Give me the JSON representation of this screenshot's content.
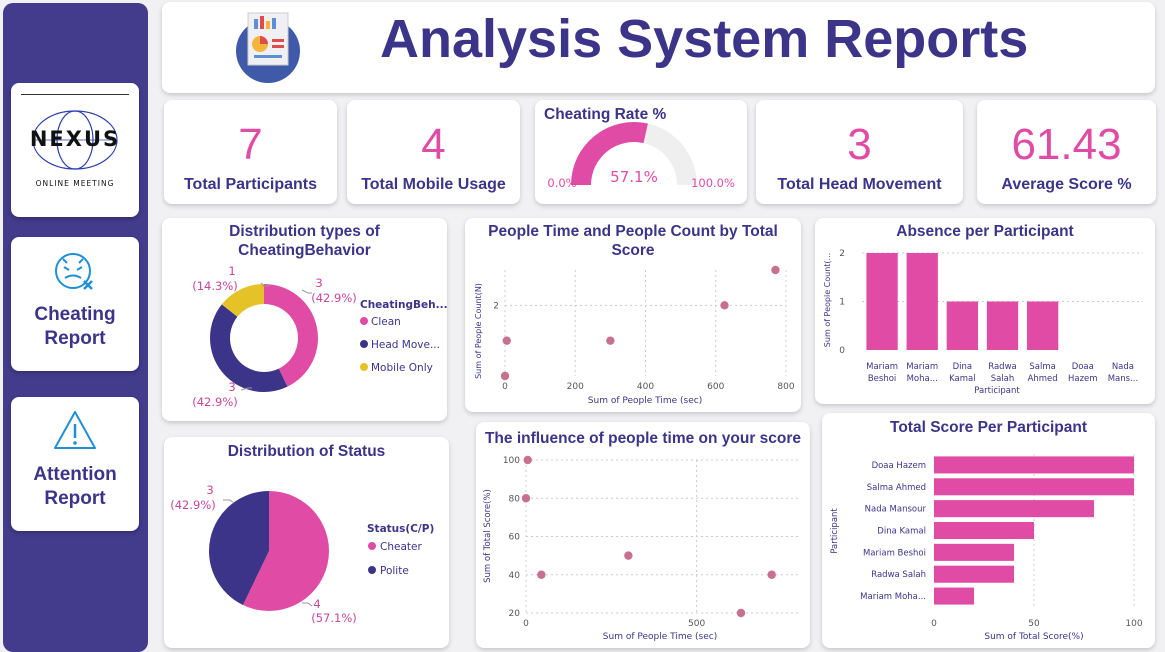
{
  "header": {
    "title": "Analysis System Reports",
    "icon": "report-document-icon"
  },
  "sidebar": {
    "logo": {
      "word": "NEXUS",
      "sub": "ONLINE MEETING"
    },
    "nav": [
      {
        "label_1": "Cheating",
        "label_2": "Report",
        "icon": "cheating-face-icon"
      },
      {
        "label_1": "Attention",
        "label_2": "Report",
        "icon": "warning-triangle-icon"
      }
    ]
  },
  "kpis": {
    "participants": {
      "value": "7",
      "label": "Total Participants"
    },
    "mobile": {
      "value": "4",
      "label": "Total Mobile Usage"
    },
    "head": {
      "value": "3",
      "label": "Total Head Movement"
    },
    "score": {
      "value": "61.43",
      "label": "Average Score %"
    }
  },
  "colors": {
    "pink": "#e04ba6",
    "indigo": "#3b3489",
    "yellow": "#e6c229",
    "track": "#efefef"
  },
  "chart_data": [
    {
      "id": "gauge",
      "type": "gauge",
      "title": "Cheating Rate %",
      "value": 57.1,
      "value_label": "57.1%",
      "min_label": "0.0%",
      "max_label": "100.0%"
    },
    {
      "id": "cheating-donut",
      "type": "donut",
      "title_1": "Distribution types of",
      "title_2": "CheatingBehavior",
      "legend_title": "CheatingBeh...",
      "slices": [
        {
          "name": "Clean",
          "value": 3,
          "label": "3",
          "pct": "(42.9%)"
        },
        {
          "name": "Head Move...",
          "value": 3,
          "label": "3",
          "pct": "(42.9%)"
        },
        {
          "name": "Mobile Only",
          "value": 1,
          "label": "1",
          "pct": "(14.3%)"
        }
      ]
    },
    {
      "id": "status-pie",
      "type": "pie",
      "title": "Distribution of Status",
      "legend_title": "Status(C/P)",
      "slices": [
        {
          "name": "Cheater",
          "value": 4,
          "label": "4",
          "pct": "(57.1%)"
        },
        {
          "name": "Polite",
          "value": 3,
          "label": "3",
          "pct": "(42.9%)"
        }
      ]
    },
    {
      "id": "time-count",
      "type": "scatter",
      "title_1": "People Time and People Count by Total",
      "title_2": "Score",
      "xlabel": "Sum of People Time (sec)",
      "ylabel": "Sum of People Count(N)",
      "xlim": [
        0,
        800
      ],
      "ylim": [
        0,
        3
      ],
      "xticks": [
        0,
        200,
        400,
        600,
        800
      ],
      "yticks": [
        2
      ],
      "points": [
        [
          0,
          0
        ],
        [
          5,
          1
        ],
        [
          300,
          1
        ],
        [
          625,
          2
        ],
        [
          770,
          3
        ]
      ]
    },
    {
      "id": "absence",
      "type": "bar",
      "title": "Absence per Participant",
      "xlabel": "Participant",
      "ylabel": "Sum of People Count(...",
      "ylim": [
        0,
        2
      ],
      "yticks": [
        0,
        1,
        2
      ],
      "categories": [
        [
          "Mariam",
          "Beshoi"
        ],
        [
          "Mariam",
          "Moha..."
        ],
        [
          "Dina",
          "Kamal"
        ],
        [
          "Radwa",
          "Salah"
        ],
        [
          "Salma",
          "Ahmed"
        ],
        [
          "Doaa",
          "Hazem"
        ],
        [
          "Nada",
          "Mans..."
        ]
      ],
      "values": [
        2,
        2,
        1,
        1,
        1,
        0,
        0
      ]
    },
    {
      "id": "time-score",
      "type": "scatter",
      "title": "The influence of people time on your score",
      "xlabel": "Sum of People Time (sec)",
      "ylabel": "Sum of Total Score(%)",
      "xlim": [
        0,
        800
      ],
      "ylim": [
        20,
        100
      ],
      "xticks": [
        0,
        500
      ],
      "yticks": [
        20,
        40,
        60,
        80,
        100
      ],
      "points": [
        [
          5,
          100
        ],
        [
          0,
          80
        ],
        [
          300,
          50
        ],
        [
          45,
          40
        ],
        [
          720,
          40
        ],
        [
          630,
          20
        ]
      ]
    },
    {
      "id": "total-score",
      "type": "hbar",
      "title": "Total Score Per Participant",
      "xlabel": "Sum of Total Score(%)",
      "ylabel": "Participant",
      "xlim": [
        0,
        100
      ],
      "xticks": [
        0,
        50,
        100
      ],
      "categories": [
        "Doaa Hazem",
        "Salma Ahmed",
        "Nada Mansour",
        "Dina Kamal",
        "Mariam Beshoi",
        "Radwa Salah",
        "Mariam Moha..."
      ],
      "values": [
        100,
        100,
        80,
        50,
        40,
        40,
        20
      ]
    }
  ]
}
